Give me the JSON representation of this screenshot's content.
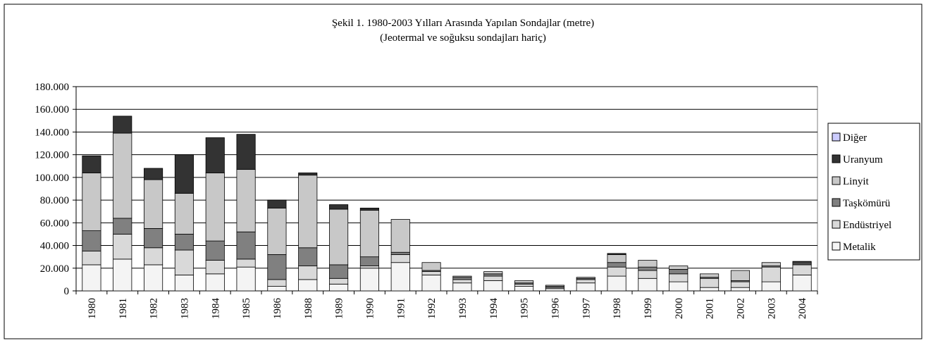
{
  "chart_data": {
    "type": "stacked_bar",
    "title": "Şekil 1. 1980-2003 Yılları Arasında Yapılan Sondajlar (metre)",
    "subtitle": "(Jeotermal ve soğuksu sondajları hariç)",
    "categories": [
      "1980",
      "1981",
      "1982",
      "1983",
      "1984",
      "1985",
      "1986",
      "1988",
      "1989",
      "1990",
      "1991",
      "1992",
      "1993",
      "1994",
      "1995",
      "1996",
      "1997",
      "1998",
      "1999",
      "2000",
      "2001",
      "2002",
      "2003",
      "2004"
    ],
    "series": [
      {
        "name": "Metalik",
        "color": "#f4f4f4",
        "values": [
          23000,
          28000,
          23000,
          14000,
          15000,
          21000,
          4000,
          10000,
          6000,
          20000,
          25000,
          14000,
          7000,
          9000,
          4000,
          2000,
          7000,
          13000,
          11000,
          8000,
          3000,
          3000,
          8000,
          14000
        ]
      },
      {
        "name": "Endüstriyel",
        "color": "#d9d9d9",
        "values": [
          12000,
          22000,
          15000,
          22000,
          12000,
          7000,
          6000,
          12000,
          5000,
          2000,
          7000,
          3000,
          3000,
          4000,
          2000,
          1000,
          3000,
          8000,
          7000,
          7000,
          8000,
          5000,
          13000,
          9000
        ]
      },
      {
        "name": "Taşkömürü",
        "color": "#808080",
        "values": [
          18000,
          14000,
          17000,
          14000,
          17000,
          24000,
          22000,
          16000,
          12000,
          8000,
          2000,
          1000,
          2000,
          2000,
          1000,
          1000,
          1000,
          4000,
          3000,
          4000,
          1000,
          1000,
          1000,
          1000
        ]
      },
      {
        "name": "Linyit",
        "color": "#c8c8c8",
        "values": [
          51000,
          75000,
          43000,
          36000,
          60000,
          55000,
          41000,
          64000,
          49000,
          41000,
          29000,
          7000,
          1000,
          2000,
          2000,
          1000,
          1000,
          7000,
          6000,
          3000,
          3000,
          9000,
          3000,
          1000
        ]
      },
      {
        "name": "Uranyum",
        "color": "#333333",
        "values": [
          15000,
          15000,
          10000,
          34000,
          31000,
          31000,
          7000,
          2000,
          4000,
          2000,
          0,
          0,
          0,
          0,
          0,
          0,
          0,
          1000,
          0,
          0,
          0,
          0,
          0,
          1000
        ]
      },
      {
        "name": "Diğer",
        "color": "#ccccff",
        "values": [
          0,
          0,
          0,
          0,
          0,
          0,
          0,
          0,
          0,
          0,
          0,
          0,
          0,
          0,
          0,
          0,
          0,
          0,
          0,
          0,
          0,
          0,
          0,
          0
        ]
      }
    ],
    "ylim": [
      0,
      180000
    ],
    "yticks": [
      0,
      {
        "value": 20000,
        "label": "20.000"
      },
      {
        "value": 40000,
        "label": "40.000"
      },
      {
        "value": 60000,
        "label": "60.000"
      },
      {
        "value": 80000,
        "label": "80.000"
      },
      {
        "value": 100000,
        "label": "100.000"
      },
      {
        "value": 120000,
        "label": "120.000"
      },
      {
        "value": 140000,
        "label": "140.000"
      },
      {
        "value": 160000,
        "label": "160.000"
      },
      {
        "value": 180000,
        "label": "180.000"
      }
    ],
    "grid": true,
    "legend": "right"
  }
}
